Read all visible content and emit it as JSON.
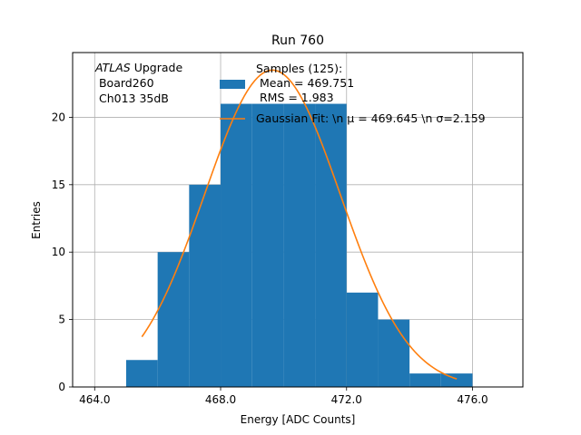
{
  "chart_data": {
    "type": "bar",
    "title": "Run 760",
    "xlabel": "Energy [ADC Counts]",
    "ylabel": "Entries",
    "xlim": [
      463.3,
      477.6
    ],
    "ylim": [
      0,
      24.8
    ],
    "x_ticks": [
      {
        "value": 464,
        "label": "464.0"
      },
      {
        "value": 468,
        "label": "468.0"
      },
      {
        "value": 472,
        "label": "472.0"
      },
      {
        "value": 476,
        "label": "476.0"
      }
    ],
    "y_ticks": [
      {
        "value": 0,
        "label": "0"
      },
      {
        "value": 5,
        "label": "5"
      },
      {
        "value": 10,
        "label": "10"
      },
      {
        "value": 15,
        "label": "15"
      },
      {
        "value": 20,
        "label": "20"
      }
    ],
    "grid": true,
    "bar_color": "#1f77b4",
    "fit_color": "#ff7f0e",
    "histogram": {
      "bin_edges": [
        465,
        466,
        467,
        468,
        469,
        470,
        471,
        472,
        473,
        474,
        475,
        476
      ],
      "counts": [
        2,
        10,
        15,
        21,
        21,
        21,
        21,
        7,
        5,
        1,
        1
      ]
    },
    "fit": {
      "amplitude": 23.5,
      "mu": 469.645,
      "sigma": 2.159,
      "x_range": [
        465.5,
        475.5
      ]
    },
    "annotation": {
      "italic": "ATLAS",
      "line1_rest": " Upgrade",
      "line2": " Board260",
      "line3": " Ch013 35dB"
    },
    "legend": {
      "samples_line1": "Samples (125):",
      "samples_line2": " Mean = 469.751",
      "samples_line3": " RMS = 1.983",
      "fit_label": "Gaussian Fit: \\n μ = 469.645 \\n σ=2.159"
    }
  }
}
